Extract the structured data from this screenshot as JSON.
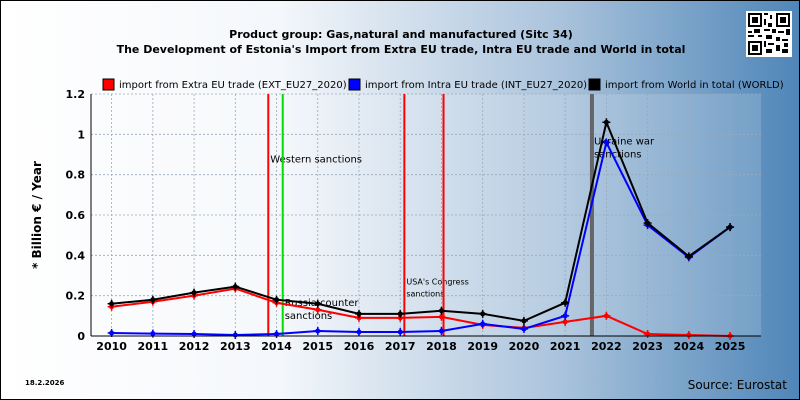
{
  "header": {
    "line1": "Product group: Gas,natural and manufactured (Sitc 34)",
    "line2": "The Development of Estonia's Import from Extra EU trade, Intra EU trade and World in total"
  },
  "footer": {
    "date": "18.2.2026",
    "source": "Source: Eurostat"
  },
  "chart_data": {
    "type": "line",
    "ylabel": "* Billion € / Year",
    "xlabel": "",
    "x": [
      2010,
      2011,
      2012,
      2013,
      2014,
      2015,
      2016,
      2017,
      2018,
      2019,
      2020,
      2021,
      2022,
      2023,
      2024,
      2025
    ],
    "xlim": [
      2009.5,
      2025.75
    ],
    "ylim": [
      0,
      1.2
    ],
    "yticks": [
      0,
      0.2,
      0.4,
      0.6,
      0.8,
      1,
      1.2
    ],
    "ytick_labels": [
      "0",
      "0.2",
      "0.4",
      "0.6",
      "0.8",
      "1",
      "1.2"
    ],
    "grid": true,
    "legend_position": "top",
    "series": [
      {
        "name": "import from Extra EU trade (EXT_EU27_2020)",
        "color": "#ff0000",
        "values": [
          0.145,
          0.17,
          0.2,
          0.235,
          0.165,
          0.13,
          0.09,
          0.09,
          0.095,
          0.055,
          0.04,
          0.07,
          0.1,
          0.01,
          0.005,
          0.0
        ]
      },
      {
        "name": "import from Intra EU trade (INT_EU27_2020)",
        "color": "#0000ff",
        "values": [
          0.015,
          0.012,
          0.01,
          0.005,
          0.01,
          0.025,
          0.02,
          0.02,
          0.025,
          0.06,
          0.035,
          0.1,
          0.96,
          0.55,
          0.39,
          0.54
        ]
      },
      {
        "name": "import from World in total (WORLD)",
        "color": "#000000",
        "values": [
          0.16,
          0.18,
          0.215,
          0.245,
          0.18,
          0.16,
          0.11,
          0.11,
          0.125,
          0.11,
          0.075,
          0.165,
          1.06,
          0.56,
          0.395,
          0.54
        ]
      }
    ],
    "events": [
      {
        "x": 2013.8,
        "color": "#ff0000",
        "label": "Western sanctions",
        "label_y": 0.86
      },
      {
        "x": 2014.15,
        "color": "#00dd00",
        "label": "Russia counter sanctions",
        "label_y": 0.15
      },
      {
        "x": 2017.1,
        "color": "#ff0000",
        "label": "USA's Congress sanctions",
        "label_y": 0.255
      },
      {
        "x": 2018.05,
        "color": "#ff0000",
        "label": "",
        "label_y": 0
      },
      {
        "x": 2021.65,
        "color": "#666666",
        "label": "Ukraine war sanctions",
        "label_y": 0.95
      }
    ]
  }
}
